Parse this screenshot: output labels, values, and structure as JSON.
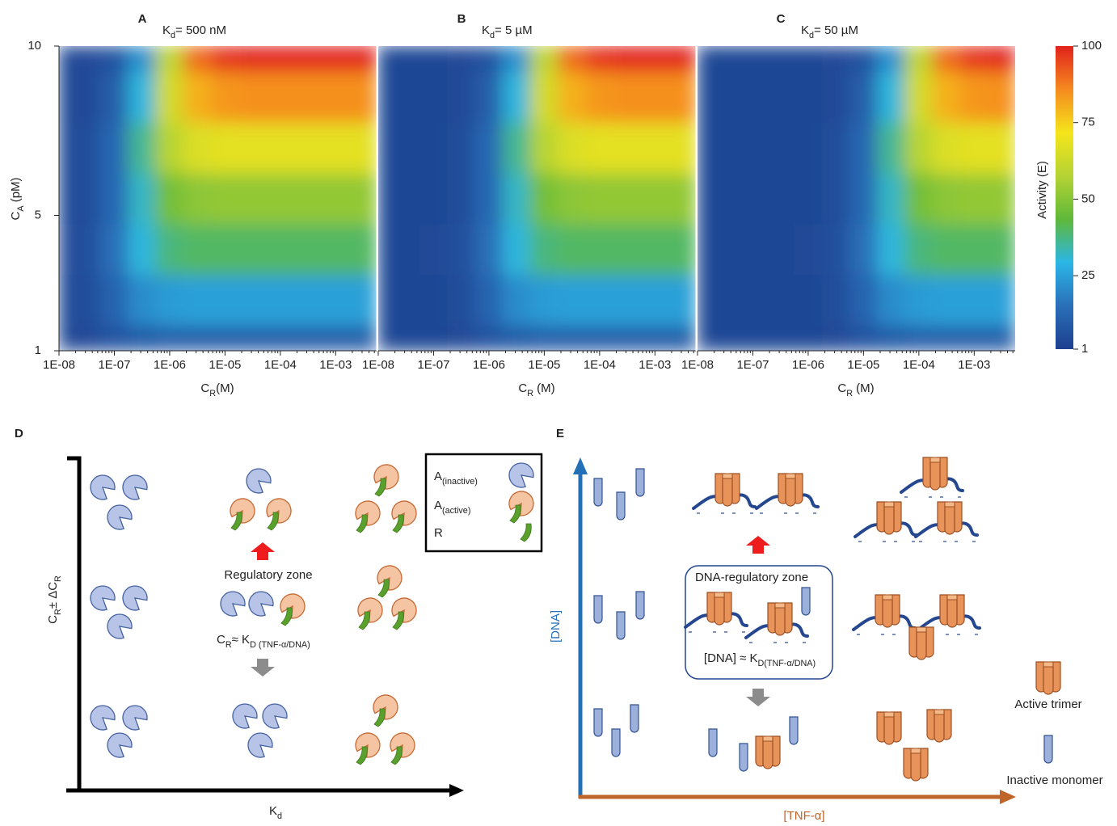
{
  "chart_data": [
    {
      "type": "heatmap",
      "panel": "A",
      "title": [
        "K",
        "d",
        "= 500 nM"
      ],
      "x_label": [
        "C",
        "R",
        "(M)"
      ],
      "y_label": [
        "C",
        "A",
        " (pM)"
      ],
      "log_x": true,
      "xlim": [
        1e-08,
        0.0055
      ],
      "ylim": [
        1,
        10
      ],
      "xticks": [
        {
          "value": 1e-08,
          "label": "1E-08"
        },
        {
          "value": 1e-07,
          "label": "1E-07"
        },
        {
          "value": 1e-06,
          "label": "1E-06"
        },
        {
          "value": 1e-05,
          "label": "1E-05"
        },
        {
          "value": 0.0001,
          "label": "1E-04"
        },
        {
          "value": 0.001,
          "label": "1E-03"
        }
      ],
      "yticks": [
        1,
        5,
        10
      ],
      "x": [
        1e-08,
        3.16e-08,
        1e-07,
        3.16e-07,
        1e-06,
        3.16e-06,
        1e-05,
        3.16e-05,
        0.0001,
        0.000316,
        0.001,
        0.00316
      ],
      "y": [
        1,
        2.5,
        4,
        5.5,
        7,
        8.5,
        10
      ],
      "z": [
        [
          3,
          4,
          7,
          9,
          10,
          10,
          10,
          10,
          10,
          10,
          10,
          10
        ],
        [
          3,
          5,
          12,
          21,
          24,
          25,
          25,
          25,
          25,
          25,
          25,
          25
        ],
        [
          4,
          6,
          15,
          30,
          38,
          40,
          40,
          40,
          40,
          40,
          40,
          40
        ],
        [
          3,
          5,
          13,
          32,
          47,
          51,
          52,
          52,
          52,
          52,
          52,
          52
        ],
        [
          3,
          5,
          13,
          36,
          58,
          66,
          68,
          68,
          68,
          68,
          68,
          68
        ],
        [
          3,
          4,
          10,
          30,
          64,
          80,
          84,
          85,
          85,
          85,
          85,
          85
        ],
        [
          3,
          4,
          7,
          22,
          60,
          90,
          98,
          100,
          100,
          100,
          100,
          100
        ]
      ]
    },
    {
      "type": "heatmap",
      "panel": "B",
      "title": [
        "K",
        "d",
        "= 5 µM"
      ],
      "x_label": [
        "C",
        "R",
        " (M)"
      ],
      "log_x": true,
      "xlim": [
        1e-08,
        0.0055
      ],
      "ylim": [
        1,
        10
      ],
      "xticks": [
        {
          "value": 1e-08,
          "label": "1E-08"
        },
        {
          "value": 1e-07,
          "label": "1E-07"
        },
        {
          "value": 1e-06,
          "label": "1E-06"
        },
        {
          "value": 1e-05,
          "label": "1E-05"
        },
        {
          "value": 0.0001,
          "label": "1E-04"
        },
        {
          "value": 0.001,
          "label": "1E-03"
        }
      ],
      "x": [
        1e-08,
        3.16e-08,
        1e-07,
        3.16e-07,
        1e-06,
        3.16e-06,
        1e-05,
        3.16e-05,
        0.0001,
        0.000316,
        0.001,
        0.00316
      ],
      "y": [
        1,
        2.5,
        4,
        5.5,
        7,
        8.5,
        10
      ],
      "z": [
        [
          3,
          3,
          3,
          4,
          7,
          9,
          10,
          10,
          10,
          10,
          10,
          10
        ],
        [
          3,
          3,
          3,
          5,
          12,
          21,
          24,
          25,
          25,
          25,
          25,
          25
        ],
        [
          3,
          3,
          4,
          6,
          15,
          30,
          38,
          40,
          40,
          40,
          40,
          40
        ],
        [
          3,
          3,
          3,
          5,
          13,
          32,
          47,
          51,
          52,
          52,
          52,
          52
        ],
        [
          3,
          3,
          3,
          5,
          13,
          36,
          58,
          66,
          68,
          68,
          68,
          68
        ],
        [
          3,
          3,
          3,
          4,
          10,
          30,
          64,
          80,
          84,
          85,
          85,
          85
        ],
        [
          3,
          3,
          3,
          4,
          7,
          22,
          60,
          90,
          98,
          100,
          100,
          100
        ]
      ]
    },
    {
      "type": "heatmap",
      "panel": "C",
      "title": [
        "K",
        "d",
        "= 50 µM"
      ],
      "x_label": [
        "C",
        "R",
        " (M)"
      ],
      "log_x": true,
      "xlim": [
        1e-08,
        0.0055
      ],
      "ylim": [
        1,
        10
      ],
      "xticks": [
        {
          "value": 1e-08,
          "label": "1E-08"
        },
        {
          "value": 1e-07,
          "label": "1E-07"
        },
        {
          "value": 1e-06,
          "label": "1E-06"
        },
        {
          "value": 1e-05,
          "label": "1E-05"
        },
        {
          "value": 0.0001,
          "label": "1E-04"
        },
        {
          "value": 0.001,
          "label": "1E-03"
        }
      ],
      "x": [
        1e-08,
        3.16e-08,
        1e-07,
        3.16e-07,
        1e-06,
        3.16e-06,
        1e-05,
        3.16e-05,
        0.0001,
        0.000316,
        0.001,
        0.00316
      ],
      "y": [
        1,
        2.5,
        4,
        5.5,
        7,
        8.5,
        10
      ],
      "z": [
        [
          3,
          3,
          3,
          3,
          3,
          4,
          7,
          9,
          10,
          10,
          10,
          10
        ],
        [
          3,
          3,
          3,
          3,
          3,
          5,
          12,
          21,
          24,
          25,
          25,
          25
        ],
        [
          3,
          3,
          3,
          3,
          4,
          6,
          15,
          30,
          38,
          40,
          40,
          40
        ],
        [
          3,
          3,
          3,
          3,
          3,
          5,
          13,
          32,
          47,
          51,
          52,
          52
        ],
        [
          3,
          3,
          3,
          3,
          3,
          5,
          13,
          36,
          58,
          66,
          68,
          68
        ],
        [
          3,
          3,
          3,
          3,
          3,
          4,
          10,
          30,
          64,
          80,
          84,
          85
        ],
        [
          3,
          3,
          3,
          3,
          3,
          4,
          7,
          22,
          60,
          90,
          98,
          100
        ]
      ]
    }
  ],
  "colorbar": {
    "label": "Activity (E)",
    "lim": [
      1,
      100
    ],
    "ticks": [
      1,
      25,
      50,
      75,
      100
    ],
    "colors": [
      "#1d3f8e",
      "#2a6fb8",
      "#2bb6e6",
      "#5fb83a",
      "#b5d334",
      "#f5e51b",
      "#f58a1f",
      "#e2211c"
    ]
  },
  "panel_d": {
    "label": "D",
    "y_label": [
      "C",
      "R",
      "± ΔC",
      "R"
    ],
    "x_label": [
      "K",
      "d"
    ],
    "zone_label": "Regulatory zone",
    "condition": [
      "C",
      "R",
      "≈ K",
      "D (TNF-α/DNA)"
    ],
    "legend": [
      [
        "A",
        "(inactive)"
      ],
      [
        "A",
        "(active)"
      ],
      [
        "R"
      ]
    ]
  },
  "panel_e": {
    "label": "E",
    "y_label": "[DNA]",
    "x_label": "[TNF-α]",
    "zone_label": "DNA-regulatory zone",
    "condition": [
      "[DNA] ≈ K",
      "D(TNF-α/DNA)"
    ],
    "legend": [
      "Active trimer",
      "Inactive monomer"
    ]
  }
}
